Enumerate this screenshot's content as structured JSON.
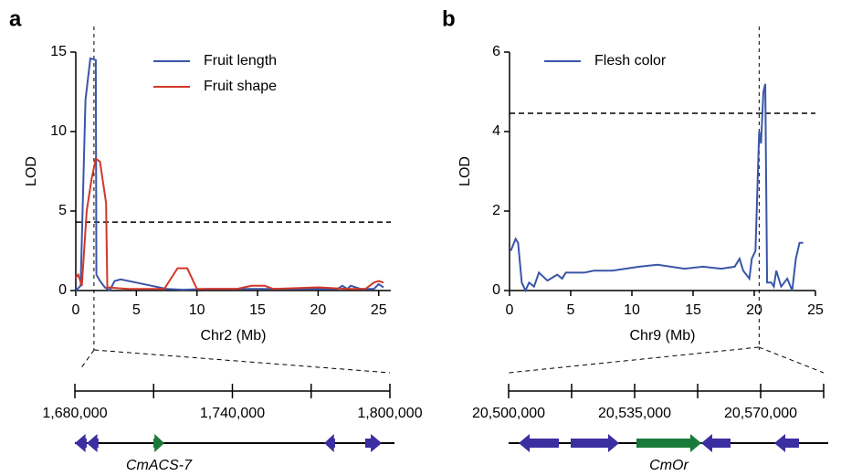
{
  "panels": [
    "a",
    "b"
  ],
  "chart_data": [
    {
      "type": "line",
      "xlabel": "Chr2 (Mb)",
      "ylabel": "LOD",
      "xlim": [
        0,
        26
      ],
      "ylim": [
        0,
        15
      ],
      "xticks": [
        0,
        5,
        10,
        15,
        20,
        25
      ],
      "yticks": [
        0,
        5,
        10,
        15
      ],
      "threshold": 4.3,
      "peak_marker": 1.5,
      "legend": "upper center",
      "series": [
        {
          "name": "Fruit length",
          "color": "#3a56a8",
          "x": [
            0,
            0.4,
            0.8,
            1.2,
            1.65,
            1.7,
            2,
            2.4,
            2.8,
            3.2,
            3.7,
            5,
            7.5,
            8.8,
            11,
            16.3,
            21.6,
            22,
            22.4,
            22.7,
            23.5,
            24.6,
            25,
            25.4
          ],
          "values": [
            0,
            0.3,
            12,
            14.6,
            14.5,
            1,
            0.6,
            0.2,
            0,
            0.6,
            0.7,
            0.5,
            0.1,
            0.05,
            0.1,
            0.1,
            0.1,
            0.3,
            0.1,
            0.3,
            0.1,
            0.1,
            0.4,
            0.2
          ]
        },
        {
          "name": "Fruit shape",
          "color": "#d2382a",
          "x": [
            0,
            0.2,
            0.5,
            0.9,
            1.3,
            1.65,
            2,
            2.5,
            2.6,
            4.3,
            7.3,
            8.4,
            9.2,
            10,
            13.3,
            14.5,
            15.6,
            16.3,
            20,
            22.4,
            23.9,
            24.6,
            25,
            25.4
          ],
          "values": [
            0.8,
            1,
            0.3,
            5,
            7,
            8.3,
            8.1,
            5.5,
            0.2,
            0.1,
            0.1,
            1.4,
            1.4,
            0.1,
            0.1,
            0.3,
            0.3,
            0.1,
            0.2,
            0.1,
            0.1,
            0.5,
            0.6,
            0.5
          ]
        }
      ]
    },
    {
      "type": "line",
      "xlabel": "Chr9 (Mb)",
      "ylabel": "LOD",
      "xlim": [
        0,
        25
      ],
      "ylim": [
        0,
        6
      ],
      "xticks": [
        0,
        5,
        10,
        15,
        20,
        25
      ],
      "yticks": [
        0,
        2,
        4,
        6
      ],
      "threshold": 4.46,
      "peak_marker": 20.4,
      "legend": "upper left",
      "series": [
        {
          "name": "Flesh color",
          "color": "#3a56a8",
          "x": [
            0.1,
            0.5,
            0.7,
            1,
            1.3,
            1.6,
            2,
            2.4,
            3.1,
            3.9,
            4.3,
            4.6,
            6.1,
            6.9,
            8.4,
            10.6,
            12.1,
            14.3,
            15.8,
            17.3,
            18.4,
            18.8,
            19.1,
            19.6,
            19.8,
            20.1,
            20.4,
            20.55,
            20.75,
            20.9,
            21.05,
            21.4,
            21.6,
            21.8,
            22.2,
            22.7,
            23.1,
            23.4,
            23.7,
            24
          ],
          "values": [
            1,
            1.3,
            1.2,
            0.2,
            0,
            0.2,
            0.1,
            0.45,
            0.25,
            0.4,
            0.3,
            0.45,
            0.45,
            0.5,
            0.5,
            0.6,
            0.65,
            0.55,
            0.6,
            0.55,
            0.6,
            0.8,
            0.5,
            0.3,
            0.8,
            1,
            4,
            3.7,
            5,
            5.2,
            0.2,
            0.2,
            0.1,
            0.5,
            0.1,
            0.3,
            0,
            0.8,
            1.2,
            1.2
          ]
        }
      ]
    }
  ],
  "gene_tracks": [
    {
      "xlim": [
        1680000,
        1800000
      ],
      "xticks": [
        {
          "value": 1680000,
          "label": "1,680,000"
        },
        {
          "value": 1740000,
          "label": "1,740,000"
        },
        {
          "value": 1800000,
          "label": "1,800,000"
        }
      ],
      "minor_xticks": [
        1710000,
        1770000
      ],
      "genes": [
        {
          "start": 1680000,
          "end": 1684500,
          "strand": "-",
          "color": "#3a2ea0"
        },
        {
          "start": 1684500,
          "end": 1689000,
          "strand": "-",
          "color": "#3a2ea0"
        },
        {
          "start": 1709900,
          "end": 1714100,
          "strand": "+",
          "color": "#1a7a3a",
          "label": "CmACS-7"
        },
        {
          "start": 1775000,
          "end": 1779100,
          "strand": "-",
          "color": "#3a2ea0"
        },
        {
          "start": 1790600,
          "end": 1796900,
          "strand": "+",
          "color": "#3a2ea0"
        }
      ]
    },
    {
      "xlim": [
        20500000,
        20587500
      ],
      "xticks": [
        {
          "value": 20500000,
          "label": "20,500,000"
        },
        {
          "value": 20535000,
          "label": "20,535,000"
        },
        {
          "value": 20570000,
          "label": "20,570,000"
        }
      ],
      "minor_xticks": [
        20517500,
        20552500,
        20587500
      ],
      "genes": [
        {
          "start": 20502790,
          "end": 20513950,
          "strand": "-",
          "color": "#3a2ea0"
        },
        {
          "start": 20517250,
          "end": 20530690,
          "strand": "+",
          "color": "#3a2ea0"
        },
        {
          "start": 20535500,
          "end": 20553510,
          "strand": "+",
          "color": "#1a7a3a",
          "label": "CmOr"
        },
        {
          "start": 20553510,
          "end": 20561630,
          "strand": "-",
          "color": "#3a2ea0"
        },
        {
          "start": 20573800,
          "end": 20580650,
          "strand": "-",
          "color": "#3a2ea0"
        }
      ]
    }
  ]
}
